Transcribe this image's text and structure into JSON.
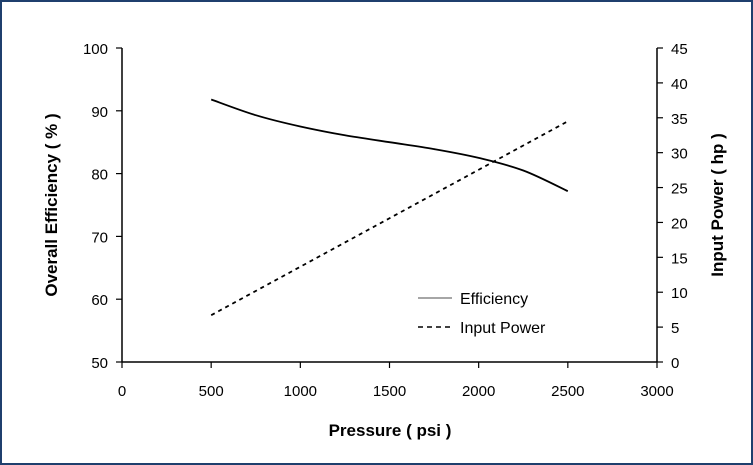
{
  "chart_data": {
    "type": "line",
    "xlabel": "Pressure ( psi )",
    "ylabel_left": "Overall Efficiency ( % )",
    "ylabel_right": "Input Power ( hp )",
    "x_axis": {
      "min": 0,
      "max": 3000,
      "ticks": [
        "0",
        "500",
        "1000",
        "1500",
        "2000",
        "2500",
        "3000"
      ]
    },
    "y_left_axis": {
      "min": 50,
      "max": 100,
      "ticks": [
        "50",
        "60",
        "70",
        "80",
        "90",
        "100"
      ]
    },
    "y_right_axis": {
      "min": 0,
      "max": 45,
      "ticks": [
        "0",
        "5",
        "10",
        "15",
        "20",
        "25",
        "30",
        "35",
        "40",
        "45"
      ]
    },
    "grid": false,
    "legend_position": "bottom-right",
    "series": [
      {
        "name": "Efficiency",
        "axis": "left",
        "style": "solid",
        "x": [
          500,
          750,
          1000,
          1250,
          1500,
          1750,
          2000,
          2250,
          2500
        ],
        "values": [
          91.8,
          89.3,
          87.5,
          86.1,
          85.0,
          83.9,
          82.5,
          80.5,
          77.2
        ]
      },
      {
        "name": "Input Power",
        "axis": "right",
        "style": "dashed",
        "x": [
          500,
          2500
        ],
        "values": [
          6.7,
          34.5
        ]
      }
    ]
  }
}
